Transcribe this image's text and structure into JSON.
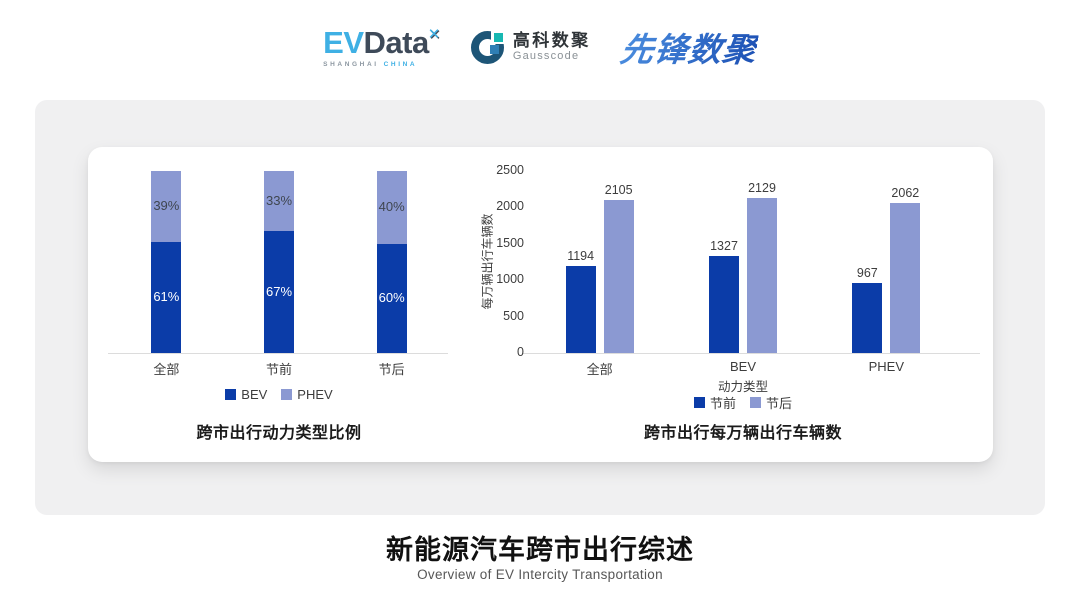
{
  "header": {
    "evdata": {
      "ev": "EV",
      "data": "Data",
      "x_icon": "✕",
      "sub_left": "SHANGHAI",
      "sub_right": "CHINA"
    },
    "gausscode": {
      "cn": "高科数聚",
      "en": "Gausscode"
    },
    "pioneer": {
      "text": "先锋数聚"
    }
  },
  "colors": {
    "series_dark_blue": "#0B3CA8",
    "series_light_blue": "#8B99D2",
    "evdata_blue": "#3FB0E4",
    "evdata_slate": "#3E4A59",
    "gauss_navy": "#1D5577",
    "gauss_teal": "#17B8B2",
    "gauss_blue": "#2F7FB5",
    "pioneer_blue": "#2A6CD2",
    "panel_gray": "#F0F0F1",
    "axis_gray": "#DCDCDC",
    "text_gray": "#3D3D3D"
  },
  "chart_data": [
    {
      "type": "bar",
      "variant": "stacked-100",
      "title": "跨市出行动力类型比例",
      "categories": [
        "全部",
        "节前",
        "节后"
      ],
      "series": [
        {
          "name": "BEV",
          "color": "#0B3CA8",
          "values": [
            61,
            67,
            60
          ],
          "labels": [
            "61%",
            "67%",
            "60%"
          ],
          "label_color": "#FFFFFF"
        },
        {
          "name": "PHEV",
          "color": "#8B99D2",
          "values": [
            39,
            33,
            40
          ],
          "labels": [
            "39%",
            "33%",
            "40%"
          ],
          "label_color": "#3F4650"
        }
      ],
      "ylim": [
        0,
        100
      ],
      "grid": false,
      "legend_position": "bottom"
    },
    {
      "type": "bar",
      "variant": "grouped",
      "title": "跨市出行每万辆出行车辆数",
      "categories": [
        "全部",
        "BEV",
        "PHEV"
      ],
      "xlabel": "动力类型",
      "ylabel": "每万辆出行车辆数",
      "yticks": [
        0,
        500,
        1000,
        1500,
        2000,
        2500
      ],
      "ylim": [
        0,
        2500
      ],
      "grid": false,
      "legend_position": "bottom",
      "series": [
        {
          "name": "节前",
          "color": "#0B3CA8",
          "values": [
            1194,
            1327,
            967
          ]
        },
        {
          "name": "节后",
          "color": "#8B99D2",
          "values": [
            2105,
            2129,
            2062
          ]
        }
      ]
    }
  ],
  "footer": {
    "title": "新能源汽车跨市出行综述",
    "subtitle": "Overview of EV Intercity Transportation"
  }
}
